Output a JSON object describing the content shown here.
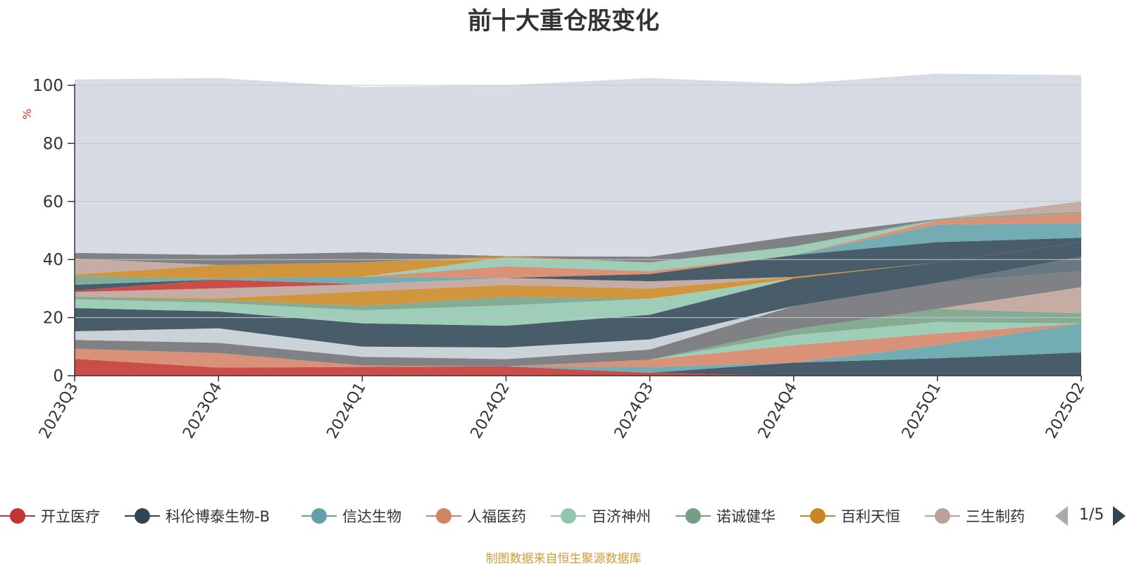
{
  "colors": {
    "background_area": "#d7dce4",
    "axis": "#333333",
    "grid": "#c0c6d0",
    "unit_label": "#e03030",
    "source_note": "#d69a35"
  },
  "legend_pager": {
    "text": "1/5"
  },
  "source_note": "制图数据来自恒生聚源数据库",
  "chart_data": {
    "type": "area",
    "stacked": true,
    "title": "前十大重仓股变化",
    "ylabel": "%",
    "xlabel": "",
    "ylim": [
      0,
      100
    ],
    "y_ticks": [
      0,
      20,
      40,
      60,
      80,
      100
    ],
    "grid": true,
    "legend_position": "bottom",
    "categories": [
      "2023Q3",
      "2023Q4",
      "2024Q1",
      "2024Q2",
      "2024Q3",
      "2024Q4",
      "2025Q1",
      "2025Q2"
    ],
    "series": [
      {
        "name": "开立医疗",
        "color": "#c23531",
        "values": [
          5.8,
          2.8,
          3.0,
          3.2,
          1.0,
          0,
          0,
          0
        ]
      },
      {
        "name": "科伦博泰生物-B",
        "color": "#2f4554",
        "values": [
          0,
          0,
          0,
          0,
          0,
          4.5,
          6.0,
          8.0
        ]
      },
      {
        "name": "信达生物",
        "color": "#61a0a8",
        "values": [
          0,
          0,
          0,
          0,
          2.0,
          0,
          4.5,
          10.0
        ]
      },
      {
        "name": "人福医药",
        "color": "#d48265",
        "values": [
          3.5,
          5.0,
          0.5,
          0,
          2.5,
          6.0,
          4.0,
          0
        ]
      },
      {
        "name": "百济神州",
        "color": "#91c7ae",
        "values": [
          0,
          0,
          0,
          0,
          0,
          3.5,
          4.0,
          0
        ]
      },
      {
        "name": "诺诚健华",
        "color": "#749f83",
        "values": [
          0,
          0,
          0,
          0,
          0,
          2.0,
          4.5,
          3.5
        ]
      },
      {
        "name": "百利天恒",
        "color": "#ca8622",
        "values": [
          0,
          0,
          0,
          0,
          0,
          0,
          0,
          0
        ]
      },
      {
        "name": "三生制药",
        "color": "#bda29a",
        "values": [
          0,
          0,
          0,
          0,
          0,
          0,
          0,
          9.0
        ]
      },
      {
        "name": "",
        "color": "#6e7074",
        "values": [
          3.0,
          3.5,
          3.0,
          2.5,
          3.5,
          8.0,
          9.0,
          5.5
        ]
      },
      {
        "name": "",
        "color": "#546570",
        "values": [
          0,
          0,
          0,
          0,
          0,
          0,
          0,
          5.0
        ]
      },
      {
        "name": "",
        "color": "#c4ccd3",
        "values": [
          3.0,
          5.0,
          3.5,
          4.0,
          3.5,
          0,
          0,
          0
        ]
      },
      {
        "name": "",
        "color": "#2f4554",
        "values": [
          8.0,
          5.8,
          8.0,
          7.5,
          8.5,
          9.5,
          7.0,
          5.0
        ]
      },
      {
        "name": "",
        "color": "#91c7ae",
        "values": [
          3.0,
          3.0,
          4.5,
          7.0,
          5.5,
          0,
          0,
          0
        ]
      },
      {
        "name": "",
        "color": "#749f83",
        "values": [
          1.0,
          1.0,
          1.5,
          3.0,
          0,
          0,
          0,
          0
        ]
      },
      {
        "name": "",
        "color": "#ca8622",
        "values": [
          0,
          0.5,
          5.0,
          4.0,
          3.5,
          0.5,
          0,
          0
        ]
      },
      {
        "name": "",
        "color": "#bda29a",
        "values": [
          1.5,
          3.5,
          2.5,
          2.5,
          2.5,
          0,
          0,
          0
        ]
      },
      {
        "name": "",
        "color": "#c23531",
        "values": [
          0.5,
          3.0,
          0,
          0,
          0,
          0,
          0,
          0
        ]
      },
      {
        "name": "",
        "color": "#2f4554",
        "values": [
          2.0,
          0,
          0,
          0,
          2.5,
          7.5,
          7.0,
          1.5
        ]
      },
      {
        "name": "",
        "color": "#61a0a8",
        "values": [
          0.5,
          0.5,
          2.5,
          0,
          0,
          0,
          6.0,
          5.0
        ]
      },
      {
        "name": "",
        "color": "#d48265",
        "values": [
          0,
          0,
          0,
          4.0,
          1.0,
          0,
          1.5,
          3.5
        ]
      },
      {
        "name": "",
        "color": "#91c7ae",
        "values": [
          0,
          0,
          0,
          3.0,
          3.0,
          3.0,
          0,
          0
        ]
      },
      {
        "name": "",
        "color": "#749f83",
        "values": [
          2.5,
          0,
          0,
          0,
          0,
          0,
          0.5,
          0.5
        ]
      },
      {
        "name": "",
        "color": "#ca8622",
        "values": [
          0.5,
          4.5,
          5.0,
          0.5,
          0,
          0,
          0,
          0
        ]
      },
      {
        "name": "",
        "color": "#bda29a",
        "values": [
          5.5,
          0,
          0,
          0,
          0,
          0,
          0,
          3.5
        ]
      },
      {
        "name": "",
        "color": "#6e7074",
        "values": [
          2.0,
          3.5,
          3.5,
          0,
          2.0,
          3.5,
          0,
          0
        ]
      },
      {
        "name": "",
        "color": "#d7dce4",
        "values": [
          59.7,
          60.9,
          57.0,
          58.8,
          61.5,
          52.5,
          50.0,
          43.5
        ]
      }
    ]
  }
}
